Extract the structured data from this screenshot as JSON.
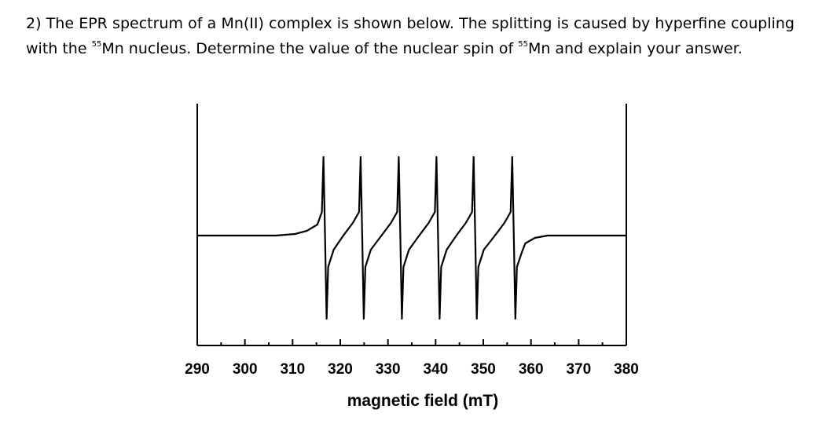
{
  "question": {
    "text_before_sup1": "2) The EPR spectrum of a Mn(II) complex is shown below. The splitting is caused by hyperfine coupling with the ",
    "sup1": "55",
    "text_between": "Mn nucleus. Determine the value of the nuclear spin of ",
    "sup2": "55",
    "text_after": "Mn and explain your answer."
  },
  "chart_data": {
    "type": "line",
    "title": "",
    "xlabel": "magnetic field (mT)",
    "ylabel": "",
    "xlim": [
      290,
      380
    ],
    "x_ticks": [
      290,
      300,
      310,
      320,
      330,
      340,
      350,
      360,
      370,
      380
    ],
    "x_tick_labels": [
      "290",
      "300",
      "310",
      "320",
      "330",
      "340",
      "350",
      "360",
      "370",
      "380"
    ],
    "y_axis_labels": false,
    "grid": false,
    "series": [
      {
        "color": "#000000",
        "hyperfine_line_centers_mT": [
          316.8,
          324.6,
          332.6,
          340.5,
          348.3,
          356.4
        ],
        "line_count": 6
      }
    ]
  }
}
